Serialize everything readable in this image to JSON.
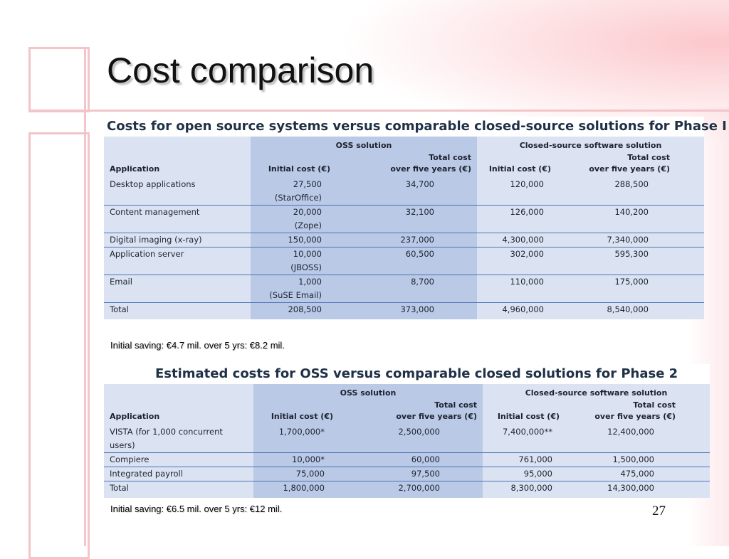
{
  "title": "Cost comparison",
  "page_number": "27",
  "table1": {
    "title": "Costs for open source systems versus comparable closed-source solutions for Phase I",
    "group_oss": "OSS solution",
    "group_closed": "Closed-source software solution",
    "headers": [
      "Application",
      "Initial cost (€)",
      "Total cost",
      "over five years (€)",
      "Initial cost (€)",
      "Total cost",
      "over five years (€)"
    ],
    "rows": [
      {
        "app": "Desktop applications",
        "oss_init": "27,500",
        "oss_sub": "(StarOffice)",
        "oss_total": "34,700",
        "cs_init": "120,000",
        "cs_total": "288,500"
      },
      {
        "app": "Content management",
        "oss_init": "20,000",
        "oss_sub": "(Zope)",
        "oss_total": "32,100",
        "cs_init": "126,000",
        "cs_total": "140,200"
      },
      {
        "app": "Digital imaging (x-ray)",
        "oss_init": "150,000",
        "oss_sub": "",
        "oss_total": "237,000",
        "cs_init": "4,300,000",
        "cs_total": "7,340,000"
      },
      {
        "app": "Application server",
        "oss_init": "10,000",
        "oss_sub": "(JBOSS)",
        "oss_total": "60,500",
        "cs_init": "302,000",
        "cs_total": "595,300"
      },
      {
        "app": "Email",
        "oss_init": "1,000",
        "oss_sub": "(SuSE Email)",
        "oss_total": "8,700",
        "cs_init": "110,000",
        "cs_total": "175,000"
      },
      {
        "app": "Total",
        "oss_init": "208,500",
        "oss_sub": "",
        "oss_total": "373,000",
        "cs_init": "4,960,000",
        "cs_total": "8,540,000"
      }
    ],
    "note": "Initial saving: €4.7 mil. over 5 yrs: €8.2 mil."
  },
  "table2": {
    "title": "Estimated costs for OSS versus comparable closed solutions for Phase 2",
    "group_oss": "OSS solution",
    "group_closed": "Closed-source software solution",
    "headers": [
      "Application",
      "Initial cost (€)",
      "Total cost",
      "over five years (€)",
      "Initial cost (€)",
      "Total cost",
      "over five years (€)"
    ],
    "rows": [
      {
        "app": "VISTA (for 1,000 concurrent users)",
        "oss_init": "1,700,000*",
        "oss_total": "2,500,000",
        "cs_init": "7,400,000**",
        "cs_total": "12,400,000"
      },
      {
        "app": "Compiere",
        "oss_init": "10,000*",
        "oss_total": "60,000",
        "cs_init": "761,000",
        "cs_total": "1,500,000"
      },
      {
        "app": "Integrated payroll",
        "oss_init": "75,000",
        "oss_total": "97,500",
        "cs_init": "95,000",
        "cs_total": "475,000"
      },
      {
        "app": "Total",
        "oss_init": "1,800,000",
        "oss_total": "2,700,000",
        "cs_init": "8,300,000",
        "cs_total": "14,300,000"
      }
    ],
    "note": "Initial saving: €6.5 mil. over 5 yrs: €12 mil."
  }
}
